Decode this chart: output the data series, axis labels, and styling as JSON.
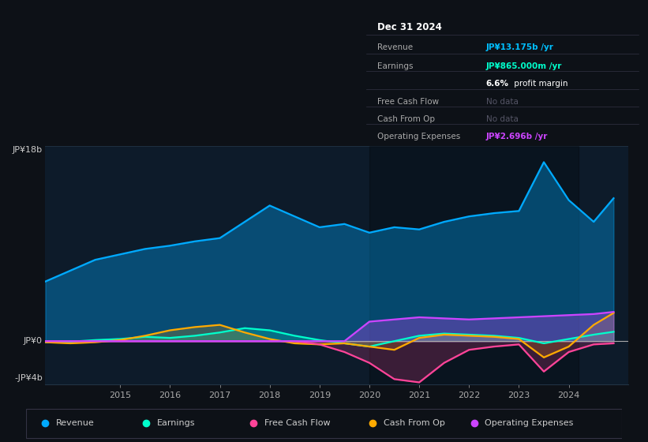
{
  "bg_color": "#0d1117",
  "plot_bg_color": "#0d1b2a",
  "ylim": [
    -4000000000,
    18000000000
  ],
  "xlim_start": 2013.5,
  "xlim_end": 2025.2,
  "y_label_top": "JP¥18b",
  "y_label_zero": "JP¥0",
  "y_label_bot": "-JP¥4b",
  "x_ticks": [
    2015,
    2016,
    2017,
    2018,
    2019,
    2020,
    2021,
    2022,
    2023,
    2024
  ],
  "info_box": {
    "title": "Dec 31 2024",
    "rows": [
      {
        "label": "Revenue",
        "value": "JP¥13.175b /yr",
        "value_color": "#00bfff",
        "nodata": false
      },
      {
        "label": "Earnings",
        "value": "JP¥865.000m /yr",
        "value_color": "#00ffcc",
        "nodata": false
      },
      {
        "label": "",
        "value": "6.6% profit margin",
        "value_color": "#ffffff",
        "nodata": false,
        "bold_prefix": "6.6%"
      },
      {
        "label": "Free Cash Flow",
        "value": "No data",
        "value_color": "#555566",
        "nodata": true
      },
      {
        "label": "Cash From Op",
        "value": "No data",
        "value_color": "#555566",
        "nodata": true
      },
      {
        "label": "Operating Expenses",
        "value": "JP¥2.696b /yr",
        "value_color": "#cc44ff",
        "nodata": false
      }
    ]
  },
  "legend": [
    {
      "label": "Revenue",
      "color": "#00aaff"
    },
    {
      "label": "Earnings",
      "color": "#00ffcc"
    },
    {
      "label": "Free Cash Flow",
      "color": "#ff4499"
    },
    {
      "label": "Cash From Op",
      "color": "#ffaa00"
    },
    {
      "label": "Operating Expenses",
      "color": "#cc44ff"
    }
  ],
  "series": {
    "revenue": {
      "color": "#00aaff",
      "alpha_fill": 0.35,
      "x": [
        2013.5,
        2014.0,
        2014.5,
        2015.0,
        2015.5,
        2016.0,
        2016.5,
        2017.0,
        2017.5,
        2018.0,
        2018.5,
        2019.0,
        2019.5,
        2020.0,
        2020.5,
        2021.0,
        2021.5,
        2022.0,
        2022.5,
        2023.0,
        2023.5,
        2024.0,
        2024.5,
        2024.9
      ],
      "y": [
        5500000000,
        6500000000,
        7500000000,
        8000000000,
        8500000000,
        8800000000,
        9200000000,
        9500000000,
        11000000000,
        12500000000,
        11500000000,
        10500000000,
        10800000000,
        10000000000,
        10500000000,
        10300000000,
        11000000000,
        11500000000,
        11800000000,
        12000000000,
        16500000000,
        13000000000,
        11000000000,
        13175000000
      ]
    },
    "earnings": {
      "color": "#00ffcc",
      "alpha_fill": 0.2,
      "x": [
        2013.5,
        2014.0,
        2014.5,
        2015.0,
        2015.5,
        2016.0,
        2016.5,
        2017.0,
        2017.5,
        2018.0,
        2018.5,
        2019.0,
        2019.5,
        2020.0,
        2020.5,
        2021.0,
        2021.5,
        2022.0,
        2022.5,
        2023.0,
        2023.5,
        2024.0,
        2024.5,
        2024.9
      ],
      "y": [
        -100000000,
        -50000000,
        100000000,
        200000000,
        400000000,
        300000000,
        500000000,
        800000000,
        1200000000,
        1000000000,
        500000000,
        100000000,
        -200000000,
        -500000000,
        0,
        500000000,
        700000000,
        600000000,
        500000000,
        300000000,
        -200000000,
        200000000,
        600000000,
        865000000
      ]
    },
    "free_cash_flow": {
      "color": "#ff4499",
      "alpha_fill": 0.2,
      "x": [
        2013.5,
        2014.0,
        2014.5,
        2015.0,
        2015.5,
        2016.0,
        2016.5,
        2017.0,
        2017.5,
        2018.0,
        2018.5,
        2019.0,
        2019.5,
        2020.0,
        2020.5,
        2021.0,
        2021.5,
        2022.0,
        2022.5,
        2023.0,
        2023.5,
        2024.0,
        2024.5,
        2024.9
      ],
      "y": [
        0,
        0,
        0,
        0,
        0,
        0,
        0,
        0,
        0,
        0,
        0,
        -300000000,
        -1000000000,
        -2000000000,
        -3500000000,
        -3800000000,
        -2000000000,
        -800000000,
        -500000000,
        -300000000,
        -2800000000,
        -1000000000,
        -300000000,
        -200000000
      ]
    },
    "cash_from_op": {
      "color": "#ffaa00",
      "alpha_fill": 0.2,
      "x": [
        2013.5,
        2014.0,
        2014.5,
        2015.0,
        2015.5,
        2016.0,
        2016.5,
        2017.0,
        2017.5,
        2018.0,
        2018.5,
        2019.0,
        2019.5,
        2020.0,
        2020.5,
        2021.0,
        2021.5,
        2022.0,
        2022.5,
        2023.0,
        2023.5,
        2024.0,
        2024.5,
        2024.9
      ],
      "y": [
        -100000000,
        -200000000,
        -100000000,
        100000000,
        500000000,
        1000000000,
        1300000000,
        1500000000,
        800000000,
        200000000,
        -200000000,
        -300000000,
        -200000000,
        -500000000,
        -800000000,
        300000000,
        600000000,
        500000000,
        400000000,
        200000000,
        -1500000000,
        -500000000,
        1500000000,
        2600000000
      ]
    },
    "operating_expenses": {
      "color": "#cc44ff",
      "alpha_fill": 0.3,
      "x": [
        2013.5,
        2014.0,
        2014.5,
        2015.0,
        2015.5,
        2016.0,
        2016.5,
        2017.0,
        2017.5,
        2018.0,
        2018.5,
        2019.0,
        2019.5,
        2020.0,
        2020.5,
        2021.0,
        2021.5,
        2022.0,
        2022.5,
        2023.0,
        2023.5,
        2024.0,
        2024.5,
        2024.9
      ],
      "y": [
        0,
        0,
        0,
        0,
        0,
        0,
        0,
        0,
        0,
        0,
        0,
        0,
        0,
        1800000000,
        2000000000,
        2200000000,
        2100000000,
        2000000000,
        2100000000,
        2200000000,
        2300000000,
        2400000000,
        2500000000,
        2696000000
      ]
    }
  }
}
